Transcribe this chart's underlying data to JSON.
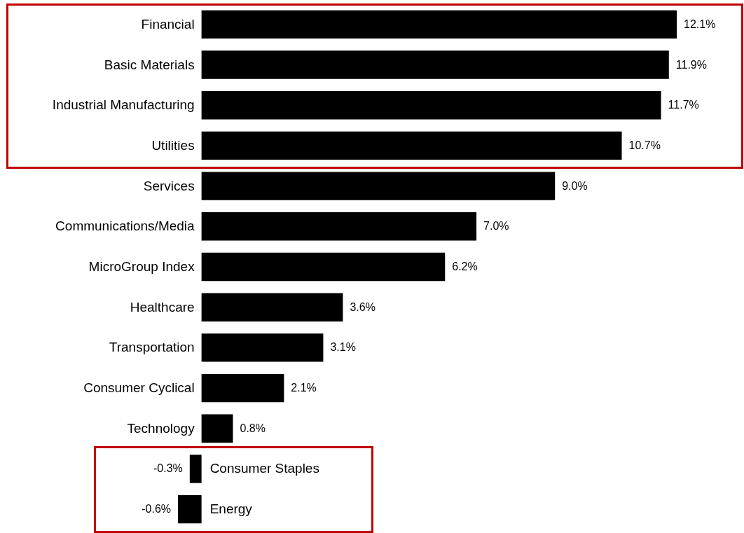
{
  "chart_data": {
    "type": "bar",
    "orientation": "horizontal",
    "color": "#000000",
    "categories": [
      "Financial",
      "Basic Materials",
      "Industrial Manufacturing",
      "Utilities",
      "Services",
      "Communications/Media",
      "MicroGroup Index",
      "Healthcare",
      "Transportation",
      "Consumer Cyclical",
      "Technology",
      "Consumer Staples",
      "Energy"
    ],
    "values": [
      12.1,
      11.9,
      11.7,
      10.7,
      9.0,
      7.0,
      6.2,
      3.6,
      3.1,
      2.1,
      0.8,
      -0.3,
      -0.6
    ],
    "value_labels": [
      "12.1%",
      "11.9%",
      "11.7%",
      "10.7%",
      "9.0%",
      "7.0%",
      "6.2%",
      "3.6%",
      "3.1%",
      "2.1%",
      "0.8%",
      "-0.3%",
      "-0.6%"
    ]
  }
}
